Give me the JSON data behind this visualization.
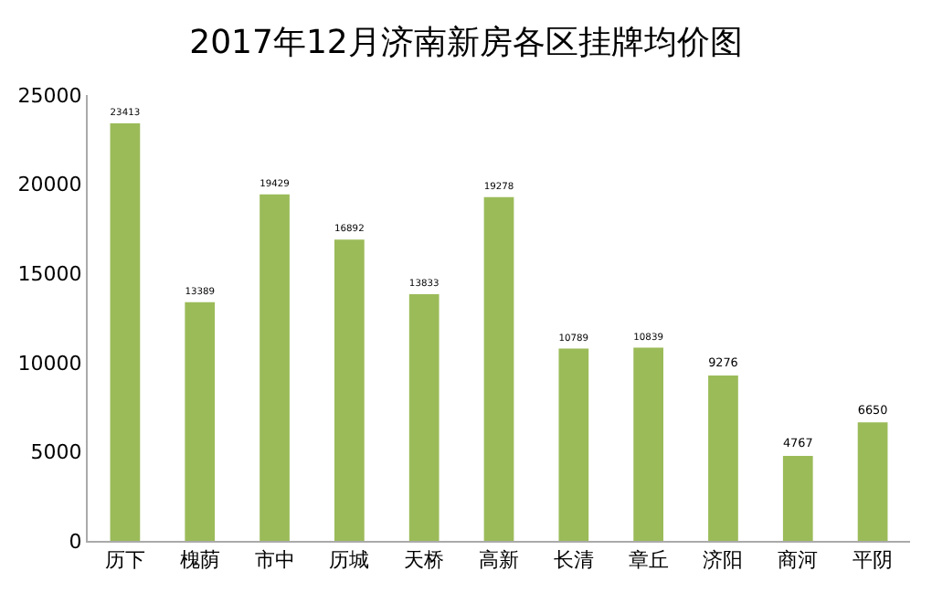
{
  "chart_data": {
    "type": "bar",
    "title": "2017年12月济南新房各区挂牌均价图",
    "categories": [
      "历下",
      "槐荫",
      "市中",
      "历城",
      "天桥",
      "高新",
      "长清",
      "章丘",
      "济阳",
      "商河",
      "平阴"
    ],
    "values": [
      23413,
      13389,
      19429,
      16892,
      13833,
      19278,
      10789,
      10839,
      9276,
      4767,
      6650
    ],
    "color": "#9bbb59",
    "ylim": [
      0,
      25000
    ],
    "yticks": [
      0,
      5000,
      10000,
      15000,
      20000,
      25000
    ],
    "grid": false,
    "data_labels": true,
    "legend": false
  }
}
